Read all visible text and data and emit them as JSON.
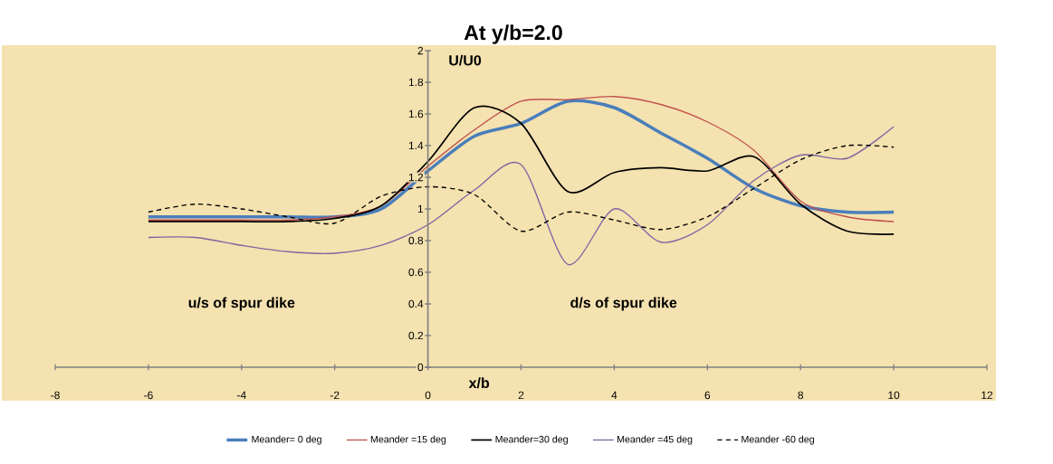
{
  "chart_data": {
    "type": "line",
    "title": "At y/b=2.0",
    "xlabel": "x/b",
    "ylabel": "U/U0",
    "x": [
      -6,
      -5,
      -4,
      -3,
      -2,
      -1,
      0,
      1,
      2,
      3,
      4,
      5,
      6,
      7,
      8,
      9,
      10
    ],
    "xlim": [
      -8,
      12
    ],
    "xticks": [
      -8,
      -6,
      -4,
      -2,
      0,
      2,
      4,
      6,
      8,
      10,
      12
    ],
    "ylim": [
      0,
      2
    ],
    "yticks": [
      0,
      0.2,
      0.4,
      0.6,
      0.8,
      1,
      1.2,
      1.4,
      1.6,
      1.8,
      2
    ],
    "grid": false,
    "legend": "bottom",
    "marker": "none",
    "annotations": [
      "u/s of spur dike",
      "d/s of spur dike"
    ],
    "series": [
      {
        "name": "Meander= 0 deg",
        "color": "#4a7ebb",
        "line_style": "solid",
        "values": [
          0.95,
          0.95,
          0.95,
          0.95,
          0.95,
          1.0,
          1.24,
          1.46,
          1.54,
          1.68,
          1.64,
          1.48,
          1.32,
          1.13,
          1.02,
          0.98,
          0.98
        ]
      },
      {
        "name": "Meander =15 deg",
        "color": "#c0504d",
        "line_style": "solid",
        "values": [
          0.93,
          0.93,
          0.93,
          0.93,
          0.95,
          1.02,
          1.27,
          1.5,
          1.68,
          1.69,
          1.71,
          1.66,
          1.55,
          1.37,
          1.05,
          0.95,
          0.92
        ]
      },
      {
        "name": "Meander=30 deg",
        "color": "#000000",
        "line_style": "solid",
        "values": [
          0.92,
          0.92,
          0.92,
          0.92,
          0.94,
          1.02,
          1.3,
          1.64,
          1.54,
          1.11,
          1.23,
          1.26,
          1.24,
          1.33,
          1.03,
          0.86,
          0.84
        ]
      },
      {
        "name": "Meander =45 deg",
        "color": "#8064a2",
        "line_style": "solid",
        "values": [
          0.82,
          0.82,
          0.77,
          0.73,
          0.72,
          0.77,
          0.9,
          1.12,
          1.28,
          0.65,
          1.0,
          0.79,
          0.9,
          1.18,
          1.34,
          1.32,
          1.52
        ]
      },
      {
        "name": "Meander -60 deg",
        "color": "#000000",
        "line_style": "dashed",
        "values": [
          0.98,
          1.03,
          1.0,
          0.95,
          0.91,
          1.08,
          1.14,
          1.09,
          0.86,
          0.98,
          0.93,
          0.87,
          0.95,
          1.13,
          1.31,
          1.4,
          1.39
        ]
      }
    ]
  }
}
